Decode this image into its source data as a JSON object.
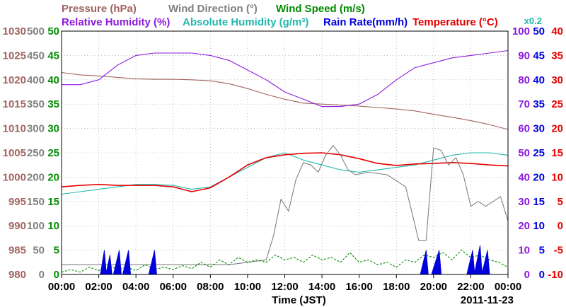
{
  "chart_data": {
    "type": "line",
    "date": "2011-11-23",
    "xlabel": "Time (JST)",
    "x_ticks": [
      "00:00",
      "02:00",
      "04:00",
      "06:00",
      "08:00",
      "10:00",
      "12:00",
      "14:00",
      "16:00",
      "18:00",
      "20:00",
      "22:00",
      "00:00"
    ],
    "xlim_hours": [
      0,
      24
    ],
    "grid": true,
    "legend": [
      {
        "label": "Pressure (hPa)",
        "color": "#a0645f"
      },
      {
        "label": "Wind Direction (°)",
        "color": "#808080"
      },
      {
        "label": "Wind Speed (m/s)",
        "color": "#008c00"
      },
      {
        "label": "Relative Humidity (%)",
        "color": "#8c1adc"
      },
      {
        "label": "Absolute Humidity (g/m³)",
        "color": "#20b8b0"
      },
      {
        "label": "Rain Rate(mm/h)",
        "color": "#0000dc"
      },
      {
        "label": "Temperature (°C)",
        "color": "#e60000"
      },
      {
        "label": "x0.2",
        "color": "#20b8b0"
      }
    ],
    "axes": {
      "pressure": {
        "color": "#a0645f",
        "range": [
          980,
          1030
        ],
        "ticks": [
          "1030",
          "1025",
          "1020",
          "1015",
          "1010",
          "1005",
          "1000",
          "995",
          "990",
          "985",
          "980"
        ]
      },
      "wind_direction": {
        "color": "#808080",
        "range": [
          0,
          500
        ],
        "ticks": [
          "500",
          "450",
          "400",
          "350",
          "300",
          "250",
          "200",
          "150",
          "100",
          "50",
          "0"
        ]
      },
      "wind_speed": {
        "color": "#008c00",
        "range": [
          0,
          50
        ],
        "ticks": [
          "50",
          "45",
          "40",
          "35",
          "30",
          "25",
          "20",
          "15",
          "10",
          "5",
          "0"
        ]
      },
      "relative_humidity": {
        "color": "#8c1adc",
        "range": [
          0,
          100
        ],
        "ticks": [
          "100",
          "90",
          "80",
          "70",
          "60",
          "50",
          "40",
          "30",
          "20",
          "10",
          "0"
        ]
      },
      "rain_rate": {
        "color": "#0000dc",
        "range": [
          0,
          50
        ],
        "ticks": [
          "50",
          "45",
          "40",
          "35",
          "30",
          "25",
          "20",
          "15",
          "10",
          "5",
          "0"
        ]
      },
      "temperature": {
        "color": "#e60000",
        "range": [
          -10,
          40
        ],
        "ticks": [
          "40",
          "35",
          "30",
          "25",
          "20",
          "15",
          "10",
          "5",
          "0",
          "-5",
          "-10"
        ]
      }
    },
    "series": [
      {
        "name": "Pressure (hPa)",
        "color": "#a0645f",
        "axis": "pressure",
        "x": [
          0,
          1,
          2,
          3,
          4,
          5,
          6,
          7,
          8,
          9,
          10,
          11,
          12,
          13,
          14,
          15,
          16,
          17,
          18,
          19,
          20,
          21,
          22,
          23,
          24
        ],
        "y": [
          1021.5,
          1021,
          1020.8,
          1020.5,
          1020.2,
          1020.1,
          1020.1,
          1020,
          1019.8,
          1019.2,
          1018.2,
          1017,
          1016,
          1015.2,
          1015,
          1014.8,
          1014.6,
          1014.3,
          1014,
          1013.6,
          1012.9,
          1012.3,
          1011.6,
          1010.8,
          1009.8
        ]
      },
      {
        "name": "Relative Humidity (%)",
        "color": "#8c1adc",
        "axis": "relative_humidity",
        "x": [
          0,
          1,
          2,
          3,
          4,
          5,
          6,
          7,
          8,
          9,
          10,
          11,
          12,
          13,
          14,
          15,
          16,
          17,
          18,
          19,
          20,
          21,
          22,
          23,
          24
        ],
        "y": [
          78,
          78,
          80,
          86,
          90,
          91,
          91,
          91,
          90,
          88,
          84,
          80,
          75,
          72,
          69,
          69,
          70,
          74,
          80,
          85,
          87,
          89,
          90,
          91,
          92
        ]
      },
      {
        "name": "Absolute Humidity (g/m³)",
        "color": "#20b8b0",
        "axis": "temperature",
        "x": [
          0,
          1,
          2,
          3,
          4,
          5,
          6,
          7,
          8,
          9,
          10,
          11,
          12,
          13,
          14,
          15,
          16,
          17,
          18,
          19,
          20,
          21,
          22,
          23,
          24
        ],
        "y": [
          6.5,
          7,
          7.5,
          8,
          8.5,
          8.5,
          8.3,
          7.5,
          8,
          10,
          12,
          14,
          15,
          13.5,
          12.5,
          11.5,
          11,
          11.5,
          12,
          12.5,
          13.5,
          14.5,
          15,
          15,
          14.5
        ]
      },
      {
        "name": "Temperature (°C)",
        "color": "#e60000",
        "axis": "temperature",
        "x": [
          0,
          1,
          2,
          3,
          4,
          5,
          6,
          7,
          8,
          9,
          10,
          11,
          12,
          13,
          14,
          15,
          16,
          17,
          18,
          19,
          20,
          21,
          22,
          23,
          24
        ],
        "y": [
          8,
          8.3,
          8.5,
          8.3,
          8.3,
          8.3,
          8,
          7,
          7.8,
          10,
          12.5,
          14,
          14.6,
          14.9,
          15,
          14.6,
          13.8,
          12.8,
          12.4,
          12.7,
          12.8,
          13,
          12.8,
          12.5,
          12.3
        ]
      },
      {
        "name": "Wind Direction (°)",
        "color": "#808080",
        "axis": "wind_direction",
        "x": [
          0,
          1,
          2,
          3,
          4,
          5,
          6,
          7,
          8,
          9,
          10,
          11,
          11.4,
          11.8,
          12.2,
          12.6,
          13,
          13.4,
          13.8,
          14.2,
          14.6,
          15,
          15.4,
          15.8,
          16.5,
          17.5,
          18.5,
          19.2,
          19.6,
          20,
          20.4,
          20.8,
          21.2,
          21.6,
          22,
          22.4,
          22.8,
          23.2,
          23.6,
          24
        ],
        "y": [
          20,
          20,
          20,
          20,
          20,
          20,
          20,
          20,
          20,
          20,
          25,
          30,
          80,
          155,
          130,
          195,
          230,
          225,
          210,
          245,
          265,
          245,
          215,
          205,
          210,
          205,
          180,
          70,
          70,
          260,
          255,
          225,
          240,
          205,
          140,
          150,
          140,
          150,
          160,
          110
        ]
      },
      {
        "name": "Wind Speed (m/s)",
        "color": "#008c00",
        "axis": "wind_speed",
        "x": [
          0,
          0.5,
          1,
          1.5,
          2,
          2.5,
          3,
          3.5,
          4,
          4.5,
          5,
          5.5,
          6,
          6.5,
          7,
          7.5,
          8,
          8.5,
          9,
          9.5,
          10,
          10.5,
          11,
          11.5,
          12,
          12.5,
          13,
          13.5,
          14,
          14.5,
          15,
          15.5,
          16,
          16.5,
          17,
          17.5,
          18,
          18.5,
          19,
          19.5,
          20,
          20.5,
          21,
          21.5,
          22,
          22.5,
          23,
          23.5,
          24
        ],
        "y": [
          0.5,
          1,
          0.5,
          1.5,
          0.8,
          2,
          1,
          1.5,
          0.8,
          2,
          1,
          1.5,
          1,
          1.8,
          1.2,
          2.5,
          1.5,
          3,
          2,
          3.5,
          2.5,
          3,
          2.5,
          4,
          3,
          3.5,
          2.5,
          4,
          3,
          3.5,
          2.5,
          4.5,
          2.5,
          3,
          2,
          2.5,
          1.5,
          3,
          2.5,
          4,
          3.5,
          4.5,
          3,
          5,
          3.5,
          4,
          3,
          2.5,
          1.5
        ]
      },
      {
        "name": "Rain Rate(mm/h)",
        "color": "#0000dc",
        "axis": "rain_rate",
        "x": [
          2.2,
          2.3,
          2.5,
          2.6,
          2.9,
          3.1,
          3.4,
          3.6,
          4.8,
          5.0,
          19.4,
          19.6,
          20.0,
          20.3,
          21.9,
          22.1,
          22.3,
          22.5,
          22.7,
          22.9
        ],
        "y": [
          0,
          5,
          0,
          4,
          0,
          5,
          0,
          5,
          0,
          5,
          0,
          5,
          0,
          5,
          0,
          5,
          0,
          6,
          0,
          5
        ]
      }
    ]
  }
}
